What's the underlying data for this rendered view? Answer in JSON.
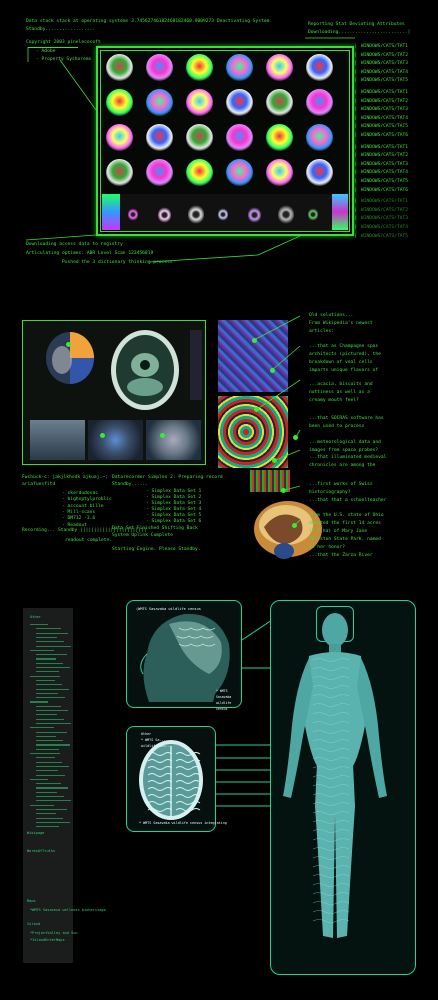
{
  "section1": {
    "header_lines": [
      "Data stack stack at operating systems 3.74562746182468182460.9009273 Deactivating System",
      "Standby.................."
    ],
    "copyright": "Copyright 2003 pinelecosoft",
    "menu": [
      "- Adobe",
      "- Property Syshorems"
    ],
    "right_header": [
      "Reporting Stat Deviating Attributes",
      "Downloading.........................|"
    ],
    "file_labels": [
      "WINDOWS/CATS/TAT1",
      "WINDOWS/CATS/TAT2",
      "WINDOWS/CATS/TAT3",
      "WINDOWS/CATS/TAT4",
      "WINDOWS/CATS/TAT5",
      "WINDOWS/CATS/TAT1",
      "WINDOWS/CATS/TAT2",
      "WINDOWS/CATS/TAT3",
      "WINDOWS/CATS/TAT4",
      "WINDOWS/CATS/TAT5",
      "WINDOWS/CATS/TAT6",
      "WINDOWS/CATS/TAT1",
      "WINDOWS/CATS/TAT2",
      "WINDOWS/CATS/TAT3",
      "WINDOWS/CATS/TAT4",
      "WINDOWS/CATS/TAT5",
      "WINDOWS/CATS/TAT6",
      "WINDOWS/CATS/TAT1",
      "WINDOWS/CATS/TAT2",
      "WINDOWS/CATS/TAT3",
      "WINDOWS/CATS/TAT4",
      "WINDOWS/CATS/TAT5"
    ],
    "bottom_lines": [
      "Downloading access data to registry",
      "Articulating optimes: ABR Level Scan 123456819",
      "Pushed the 3 dictionary thinking process"
    ]
  },
  "section2": {
    "left_panel_lines": [
      "Fwchuck-c: jakjlkhsdk ajkuaj.~;",
      "ariafuesfitd"
    ],
    "list_col1": [
      "- skerdudosac",
      "- bighsptylproblic",
      "- account bille",
      "- Mill-scans",
      "- DM712 -3.6",
      "- Readout"
    ],
    "list_col2": [
      "- Simplex Data Set 1",
      "- Simplex Data Set 2",
      "- Simplex Data Set 3",
      "- Simplex Data Set 4",
      "- Simplex Data Set 5",
      "- Simplex Data Set 6"
    ],
    "status_mid": [
      "Datarecorder Simplex 2: Preparing record",
      "Standby......"
    ],
    "recording": "Recording... Standby ||||||||||||||||||||||||",
    "readout_complete": "readout complete.",
    "final_lines": [
      "Data Set Finished Shifting Back",
      "System Uplink Complete",
      "",
      "Starting Engine. Please Standby."
    ],
    "annotations": [
      "Old solutions...",
      "From Wikipedia's newest",
      "articles:",
      "...that as Champagne spas",
      "architects (pictured), the",
      "breakdown of veal cells",
      "imparts unique flavors of",
      "...acacia, biscuits and",
      "nuttiness as well as a",
      "creamy mouth feel?",
      "...that SOCRAS software has",
      "been used to process",
      "...meteorological data and",
      "images from space probes?",
      "...that illuminated medieval",
      "chronicles are among the",
      "...first works of Swiss",
      "historiography?",
      "...that that a schoolteacher",
      "from the U.S. state of Ohio",
      "donated the first 14 acres",
      "(5.7 ha) of Mary Jane",
      "Thurston State Park, named",
      "in her honor?",
      "...that the Zarza River"
    ]
  },
  "section3": {
    "side_title": "Other",
    "side_headings": [
      "Wikipage",
      "WorksOfTruths",
      "Maps",
      "Island"
    ],
    "side_items": [
      "*WMTS Sasaveca wellness bioheritage",
      "*ProjectValley and Sun",
      "*IslandEnterMaps"
    ],
    "callout_top": "(WMTS Sasavaka wildlife census",
    "callout_tr": "* WMTS Sasavaka wildlife census",
    "callout_mid": [
      "Other",
      "* WMTS Sa...",
      "wildlife cen..."
    ],
    "callout_bottom": "* WMTS Sasavaka wildlife census integrating"
  }
}
